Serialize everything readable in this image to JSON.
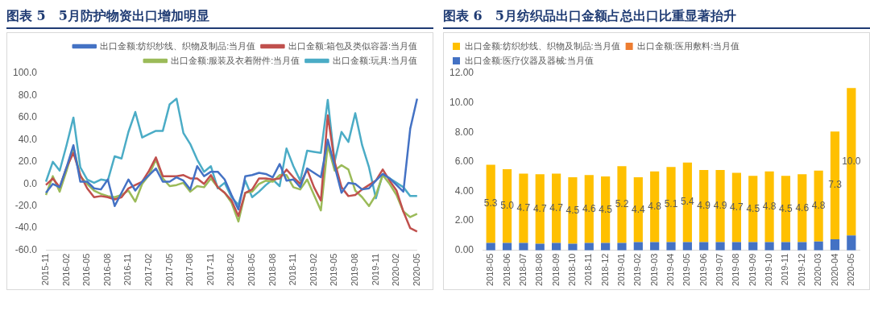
{
  "chart_data": [
    {
      "type": "line",
      "title": "图表 5　5月防护物资出口增加明显",
      "categories": [
        "2015-11",
        null,
        null,
        "2016-02",
        null,
        null,
        "2016-05",
        null,
        null,
        "2016-08",
        null,
        null,
        "2016-11",
        null,
        null,
        "2017-02",
        null,
        null,
        "2017-05",
        null,
        null,
        "2017-08",
        null,
        null,
        "2017-11",
        null,
        null,
        "2018-02",
        null,
        null,
        "2018-05",
        null,
        null,
        "2018-08",
        null,
        null,
        "2018-11",
        null,
        null,
        "2019-02",
        null,
        null,
        "2019-05",
        null,
        null,
        "2019-08",
        null,
        null,
        "2019-11",
        null,
        null,
        "2020-02",
        null,
        null,
        "2020-05"
      ],
      "series": [
        {
          "name": "出口金额:纺织纱线、织物及制品:当月值",
          "color": "#4472c4",
          "values": [
            -8,
            0,
            -3,
            15,
            35,
            2,
            2,
            -4,
            -5,
            4,
            -20,
            -8,
            4,
            -6,
            2,
            8,
            14,
            2,
            2,
            6,
            3,
            -5,
            16,
            7,
            11,
            11,
            4,
            -10,
            -23,
            7,
            8,
            10,
            9,
            6,
            18,
            3,
            4,
            -3,
            14,
            10,
            6,
            40,
            16,
            -8,
            1,
            0,
            -5,
            -4,
            3,
            9,
            5,
            -1,
            -7,
            50,
            77
          ]
        },
        {
          "name": "出口金额:箱包及类似容器:当月值",
          "color": "#c0504d",
          "values": [
            -1,
            5,
            -3,
            15,
            28,
            8,
            -4,
            -12,
            -11,
            -12,
            -14,
            -12,
            -4,
            -1,
            2,
            12,
            24,
            7,
            7,
            7,
            8,
            5,
            5,
            0,
            8,
            -3,
            -8,
            -15,
            -29,
            -8,
            -5,
            5,
            5,
            4,
            5,
            13,
            6,
            0,
            13,
            -3,
            -15,
            62,
            20,
            -3,
            -11,
            -10,
            -5,
            -1,
            3,
            13,
            3,
            -6,
            -25,
            -40,
            -43
          ]
        },
        {
          "name": "出口金额:服装及衣着附件:当月值",
          "color": "#9bbb59",
          "values": [
            -10,
            7,
            -7,
            12,
            33,
            7,
            0,
            -6,
            -9,
            -11,
            -12,
            -10,
            -6,
            -16,
            0,
            8,
            22,
            5,
            -2,
            -1,
            1,
            -7,
            -2,
            -3,
            5,
            -3,
            -8,
            -17,
            -34,
            -8,
            -7,
            0,
            3,
            2,
            8,
            8,
            -3,
            -5,
            4,
            -10,
            -24,
            35,
            12,
            17,
            13,
            -6,
            -12,
            -20,
            -10,
            8,
            0,
            -10,
            -25,
            -30,
            -27
          ]
        },
        {
          "name": "出口金额:玩具:当月值",
          "color": "#4bacc6",
          "values": [
            2,
            20,
            12,
            35,
            60,
            15,
            4,
            1,
            4,
            3,
            25,
            23,
            47,
            65,
            42,
            45,
            48,
            48,
            72,
            77,
            46,
            36,
            22,
            11,
            16,
            -4,
            1,
            -12,
            -19,
            3,
            -12,
            -7,
            -1,
            4,
            -2,
            32,
            16,
            3,
            30,
            29,
            28,
            76,
            20,
            47,
            38,
            64,
            35,
            15,
            -13,
            9,
            5,
            1,
            -3,
            -11,
            -11
          ]
        }
      ],
      "ylim": [
        -60,
        100
      ],
      "yticks": [
        {
          "value": -60,
          "label": "-60.0"
        },
        {
          "value": -40,
          "label": "-40.0"
        },
        {
          "value": -20,
          "label": "-20.0"
        },
        {
          "value": 0,
          "label": "0.0"
        },
        {
          "value": 20,
          "label": "20.0"
        },
        {
          "value": 40,
          "label": "40.0"
        },
        {
          "value": 60,
          "label": "60.0"
        },
        {
          "value": 80,
          "label": "80.0"
        },
        {
          "value": 100,
          "label": "100.0"
        }
      ],
      "legend": "top right",
      "grid": false
    },
    {
      "type": "bar",
      "stacked": true,
      "title": "图表 6　5月纺织品出口金额占总出口比重显著抬升",
      "categories": [
        "2018-05",
        "2018-06",
        "2018-07",
        "2018-08",
        "2018-09",
        "2018-10",
        "2018-11",
        "2018-12",
        "2019-01",
        "2019-02",
        "2019-03",
        "2019-04",
        "2019-05",
        "2019-06",
        "2019-07",
        "2019-08",
        "2019-09",
        "2019-10",
        "2019-11",
        "2019-12",
        "2020-03",
        "2020-04",
        "2020-05"
      ],
      "series": [
        {
          "name": "出口金额:医疗仪器及器械:当月值",
          "color": "#4472c4",
          "values": [
            0.5,
            0.5,
            0.5,
            0.45,
            0.5,
            0.45,
            0.5,
            0.5,
            0.5,
            0.55,
            0.55,
            0.55,
            0.55,
            0.55,
            0.55,
            0.55,
            0.55,
            0.55,
            0.55,
            0.55,
            0.6,
            0.75,
            1.0
          ]
        },
        {
          "name": "出口金额:医用敷料:当月值",
          "color": "#ed7d31",
          "values": [
            0,
            0,
            0,
            0,
            0,
            0,
            0,
            0,
            0,
            0,
            0,
            0,
            0,
            0,
            0,
            0,
            0,
            0,
            0,
            0,
            0,
            0,
            0
          ]
        },
        {
          "name": "出口金额:纺织纱线、织物及制品:当月值",
          "color": "#ffc000",
          "values": [
            5.3,
            5.0,
            4.7,
            4.7,
            4.7,
            4.5,
            4.6,
            4.5,
            5.2,
            4.4,
            4.8,
            5.1,
            5.4,
            4.9,
            4.9,
            4.7,
            4.5,
            4.8,
            4.5,
            4.6,
            4.8,
            7.3,
            10.0
          ],
          "value_labels": [
            "5.3",
            "5.0",
            "4.7",
            "4.7",
            "4.7",
            "4.5",
            "4.6",
            "4.5",
            "5.2",
            "4.4",
            "4.8",
            "5.1",
            "5.4",
            "4.9",
            "4.9",
            "4.7",
            "4.5",
            "4.8",
            "4.5",
            "4.6",
            "4.8",
            "7.3",
            "10.0"
          ]
        }
      ],
      "ylim": [
        0,
        12
      ],
      "yticks": [
        {
          "value": 0,
          "label": "0.00"
        },
        {
          "value": 2,
          "label": "2.00"
        },
        {
          "value": 4,
          "label": "4.00"
        },
        {
          "value": 6,
          "label": "6.00"
        },
        {
          "value": 8,
          "label": "8.00"
        },
        {
          "value": 10,
          "label": "10.00"
        },
        {
          "value": 12,
          "label": "12.00"
        }
      ],
      "legend": "top left",
      "grid": false
    }
  ]
}
